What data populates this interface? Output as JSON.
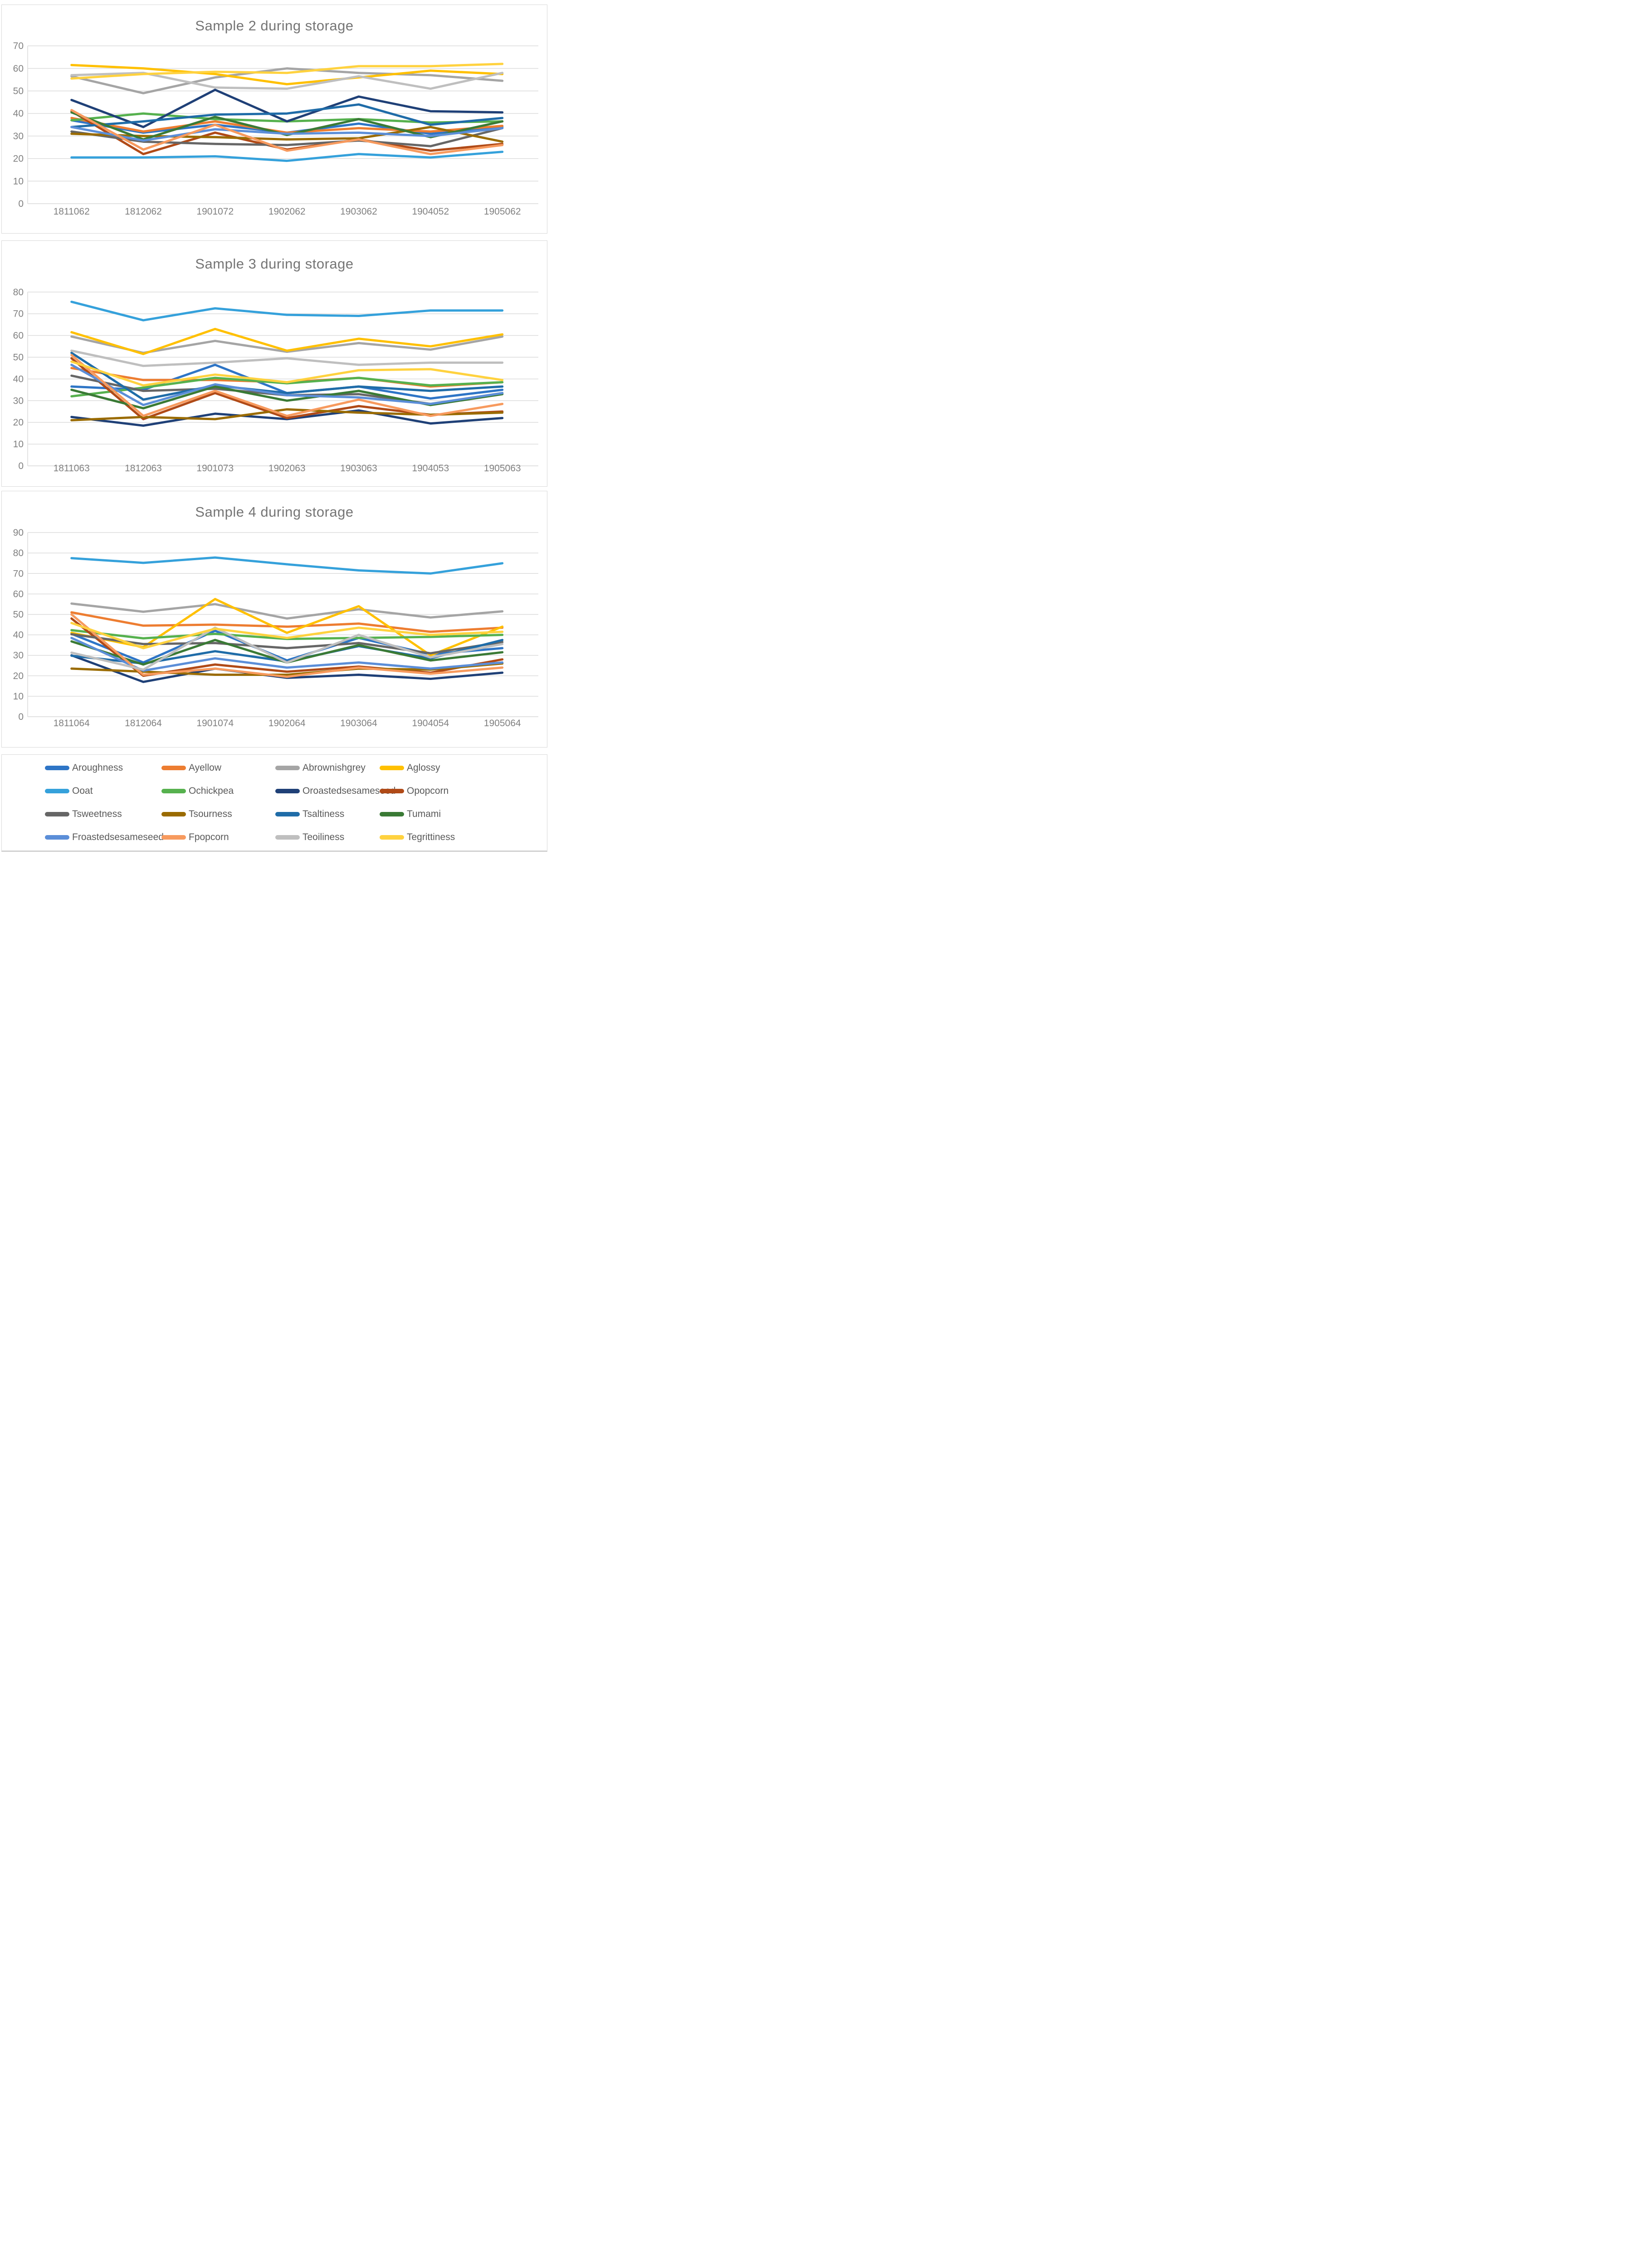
{
  "page": {
    "description": "Three stacked line charts of sensory attributes during storage for samples 2, 3 and 4, with a shared 16-series legend"
  },
  "palette": {
    "Aroughness": "#2E75C6",
    "Ayellow": "#ED7D31",
    "Abrownishgrey": "#A5A5A5",
    "Aglossy": "#FFC000",
    "Ooat": "#35A1DB",
    "Ochickpea": "#56B14E",
    "Oroastedsesameseed": "#1F4077",
    "Opopcorn": "#B04A17",
    "Tsweetness": "#666666",
    "Tsourness": "#9A6B00",
    "Tsaltiness": "#1F6CA8",
    "Tumami": "#3A7A35",
    "Froastedsesameseed": "#5B8ED8",
    "Fpopcorn": "#F79A5E",
    "Teoiliness": "#BFBFBF",
    "Tegrittiness": "#FFD23F"
  },
  "legend": {
    "rows": [
      [
        "Aroughness",
        "Ayellow",
        "Abrownishgrey",
        "Aglossy"
      ],
      [
        "Ooat",
        "Ochickpea",
        "Oroastedsesameseed",
        "Opopcorn"
      ],
      [
        "Tsweetness",
        "Tsourness",
        "Tsaltiness",
        "Tumami"
      ],
      [
        "Froastedsesameseed",
        "Fpopcorn",
        "Teoiliness",
        "Tegrittiness"
      ]
    ]
  },
  "chart_data": [
    {
      "type": "line",
      "title": "Sample 2 during storage",
      "xlabel": "",
      "ylabel": "",
      "ylim": [
        0,
        70
      ],
      "ytick_step": 10,
      "grid": true,
      "legend_position": "shared-bottom",
      "categories": [
        "1811062",
        "1812062",
        "1901072",
        "1902062",
        "1903062",
        "1904052",
        "1905062"
      ],
      "series": [
        {
          "name": "Aroughness",
          "values": [
            37,
            31.5,
            35,
            31.5,
            35.5,
            31,
            34
          ]
        },
        {
          "name": "Ayellow",
          "values": [
            38,
            32,
            36.5,
            31.5,
            33.5,
            32,
            34.5
          ]
        },
        {
          "name": "Abrownishgrey",
          "values": [
            56.5,
            49,
            56,
            60,
            58,
            57,
            54.5
          ]
        },
        {
          "name": "Aglossy",
          "values": [
            61.5,
            60,
            57.5,
            53,
            56,
            59,
            57.5
          ]
        },
        {
          "name": "Ooat",
          "values": [
            20.5,
            20.5,
            21,
            19,
            22,
            20.5,
            23
          ]
        },
        {
          "name": "Ochickpea",
          "values": [
            37,
            40,
            37.5,
            36.5,
            37.5,
            36,
            36.5
          ]
        },
        {
          "name": "Oroastedsesameseed",
          "values": [
            46,
            34,
            50.5,
            36.5,
            47.5,
            41,
            40.5
          ]
        },
        {
          "name": "Opopcorn",
          "values": [
            41,
            22,
            31.5,
            24,
            28.5,
            23.5,
            26.5
          ]
        },
        {
          "name": "Tsweetness",
          "values": [
            32,
            27.5,
            26.5,
            26,
            28,
            25.5,
            33.5
          ]
        },
        {
          "name": "Tsourness",
          "values": [
            31,
            30,
            29.5,
            28.5,
            29,
            34,
            27.5
          ]
        },
        {
          "name": "Tsaltiness",
          "values": [
            34,
            36.5,
            39.5,
            40,
            44,
            35,
            38
          ]
        },
        {
          "name": "Tumami",
          "values": [
            40.5,
            28.5,
            38.5,
            30.5,
            37.5,
            29.5,
            36.5
          ]
        },
        {
          "name": "Froastedsesameseed",
          "values": [
            34,
            28,
            33,
            31,
            31.5,
            30,
            33.5
          ]
        },
        {
          "name": "Fpopcorn",
          "values": [
            41.5,
            24,
            35,
            23.5,
            28.5,
            22,
            26
          ]
        },
        {
          "name": "Teoiliness",
          "values": [
            57,
            58,
            51.5,
            51,
            56.5,
            51,
            58
          ]
        },
        {
          "name": "Tegrittiness",
          "values": [
            55.5,
            57.5,
            58.5,
            58,
            61,
            61,
            62
          ]
        }
      ]
    },
    {
      "type": "line",
      "title": "Sample 3 during storage",
      "xlabel": "",
      "ylabel": "",
      "ylim": [
        0,
        80
      ],
      "ytick_step": 10,
      "grid": true,
      "legend_position": "shared-bottom",
      "categories": [
        "1811063",
        "1812063",
        "1901073",
        "1902063",
        "1903063",
        "1904053",
        "1905063"
      ],
      "series": [
        {
          "name": "Aroughness",
          "values": [
            36.5,
            35,
            46.5,
            33.5,
            36.5,
            31,
            35
          ]
        },
        {
          "name": "Ayellow",
          "values": [
            45,
            39.5,
            39.5,
            38.5,
            40.5,
            36.5,
            38.5
          ]
        },
        {
          "name": "Abrownishgrey",
          "values": [
            59.5,
            52,
            57.5,
            52.5,
            56.5,
            53.5,
            59.5
          ]
        },
        {
          "name": "Aglossy",
          "values": [
            61.5,
            51.5,
            63,
            53,
            58.5,
            55,
            60.5
          ]
        },
        {
          "name": "Ooat",
          "values": [
            75.5,
            67,
            72.5,
            69.5,
            69,
            71.5,
            71.5
          ]
        },
        {
          "name": "Ochickpea",
          "values": [
            32,
            36,
            40.5,
            38,
            40.5,
            37,
            38.5
          ]
        },
        {
          "name": "Oroastedsesameseed",
          "values": [
            22.5,
            18.5,
            24,
            21.5,
            25.5,
            19.5,
            22
          ]
        },
        {
          "name": "Opopcorn",
          "values": [
            49.5,
            21.5,
            33.5,
            22,
            27.5,
            23.5,
            25
          ]
        },
        {
          "name": "Tsweetness",
          "values": [
            41.5,
            34.5,
            35.5,
            32.5,
            33,
            28.5,
            33.5
          ]
        },
        {
          "name": "Tsourness",
          "values": [
            21,
            22.5,
            21.5,
            26,
            24.5,
            23.5,
            24.5
          ]
        },
        {
          "name": "Tsaltiness",
          "values": [
            52,
            30.5,
            37,
            33.5,
            36.5,
            34.5,
            36.5
          ]
        },
        {
          "name": "Tumami",
          "values": [
            35,
            26.5,
            36.5,
            30,
            34.5,
            28,
            33
          ]
        },
        {
          "name": "Froastedsesameseed",
          "values": [
            46.5,
            28,
            37.5,
            32.5,
            31.5,
            28.5,
            33.5
          ]
        },
        {
          "name": "Fpopcorn",
          "values": [
            51,
            23,
            34.5,
            23,
            30.5,
            23,
            28.5
          ]
        },
        {
          "name": "Teoiliness",
          "values": [
            53,
            46,
            47.5,
            49.5,
            46.5,
            47.5,
            47.5
          ]
        },
        {
          "name": "Tegrittiness",
          "values": [
            48,
            37,
            42,
            38.5,
            44,
            44.5,
            39.5
          ]
        }
      ]
    },
    {
      "type": "line",
      "title": "Sample 4 during storage",
      "xlabel": "",
      "ylabel": "",
      "ylim": [
        0,
        90
      ],
      "ytick_step": 10,
      "grid": true,
      "legend_position": "shared-bottom",
      "categories": [
        "1811064",
        "1812064",
        "1901074",
        "1902064",
        "1903064",
        "1904054",
        "1905064"
      ],
      "series": [
        {
          "name": "Aroughness",
          "values": [
            40.5,
            26.5,
            42,
            27.5,
            38.5,
            30.5,
            33.5
          ]
        },
        {
          "name": "Ayellow",
          "values": [
            51,
            44.5,
            45,
            44,
            45.5,
            41.5,
            43.5
          ]
        },
        {
          "name": "Abrownishgrey",
          "values": [
            55.3,
            51.3,
            55,
            48,
            52.5,
            48.5,
            51.5
          ]
        },
        {
          "name": "Aglossy",
          "values": [
            41,
            34,
            57.5,
            41,
            54,
            30,
            44
          ]
        },
        {
          "name": "Ooat",
          "values": [
            77.5,
            75.2,
            77.8,
            74.5,
            71.5,
            70,
            75
          ]
        },
        {
          "name": "Ochickpea",
          "values": [
            42.3,
            38.3,
            40.5,
            38,
            38.5,
            39,
            40
          ]
        },
        {
          "name": "Oroastedsesameseed",
          "values": [
            30,
            17,
            23.5,
            19,
            20.5,
            18.5,
            21.5
          ]
        },
        {
          "name": "Opopcorn",
          "values": [
            48,
            20,
            25.5,
            22,
            24.5,
            21.5,
            28
          ]
        },
        {
          "name": "Tsweetness",
          "values": [
            40.3,
            35.5,
            36,
            33.5,
            36,
            31,
            36.5
          ]
        },
        {
          "name": "Tsourness",
          "values": [
            23.5,
            22,
            20.5,
            20.5,
            23.5,
            23,
            26
          ]
        },
        {
          "name": "Tsaltiness",
          "values": [
            29.8,
            26,
            32,
            27,
            34.5,
            28.5,
            37.5
          ]
        },
        {
          "name": "Tumami",
          "values": [
            36.8,
            25.5,
            37.5,
            26.5,
            35,
            27.5,
            31.5
          ]
        },
        {
          "name": "Froastedsesameseed",
          "values": [
            38.5,
            22.5,
            28.5,
            24,
            26.5,
            23.5,
            26.5
          ]
        },
        {
          "name": "Fpopcorn",
          "values": [
            50,
            20.5,
            23.5,
            19.5,
            24,
            21,
            24
          ]
        },
        {
          "name": "Teoiliness",
          "values": [
            31.3,
            23,
            43.5,
            26.5,
            40,
            29,
            35.5
          ]
        },
        {
          "name": "Tegrittiness",
          "values": [
            45.8,
            33.5,
            43,
            38.5,
            43.5,
            40,
            41.5
          ]
        }
      ]
    }
  ]
}
